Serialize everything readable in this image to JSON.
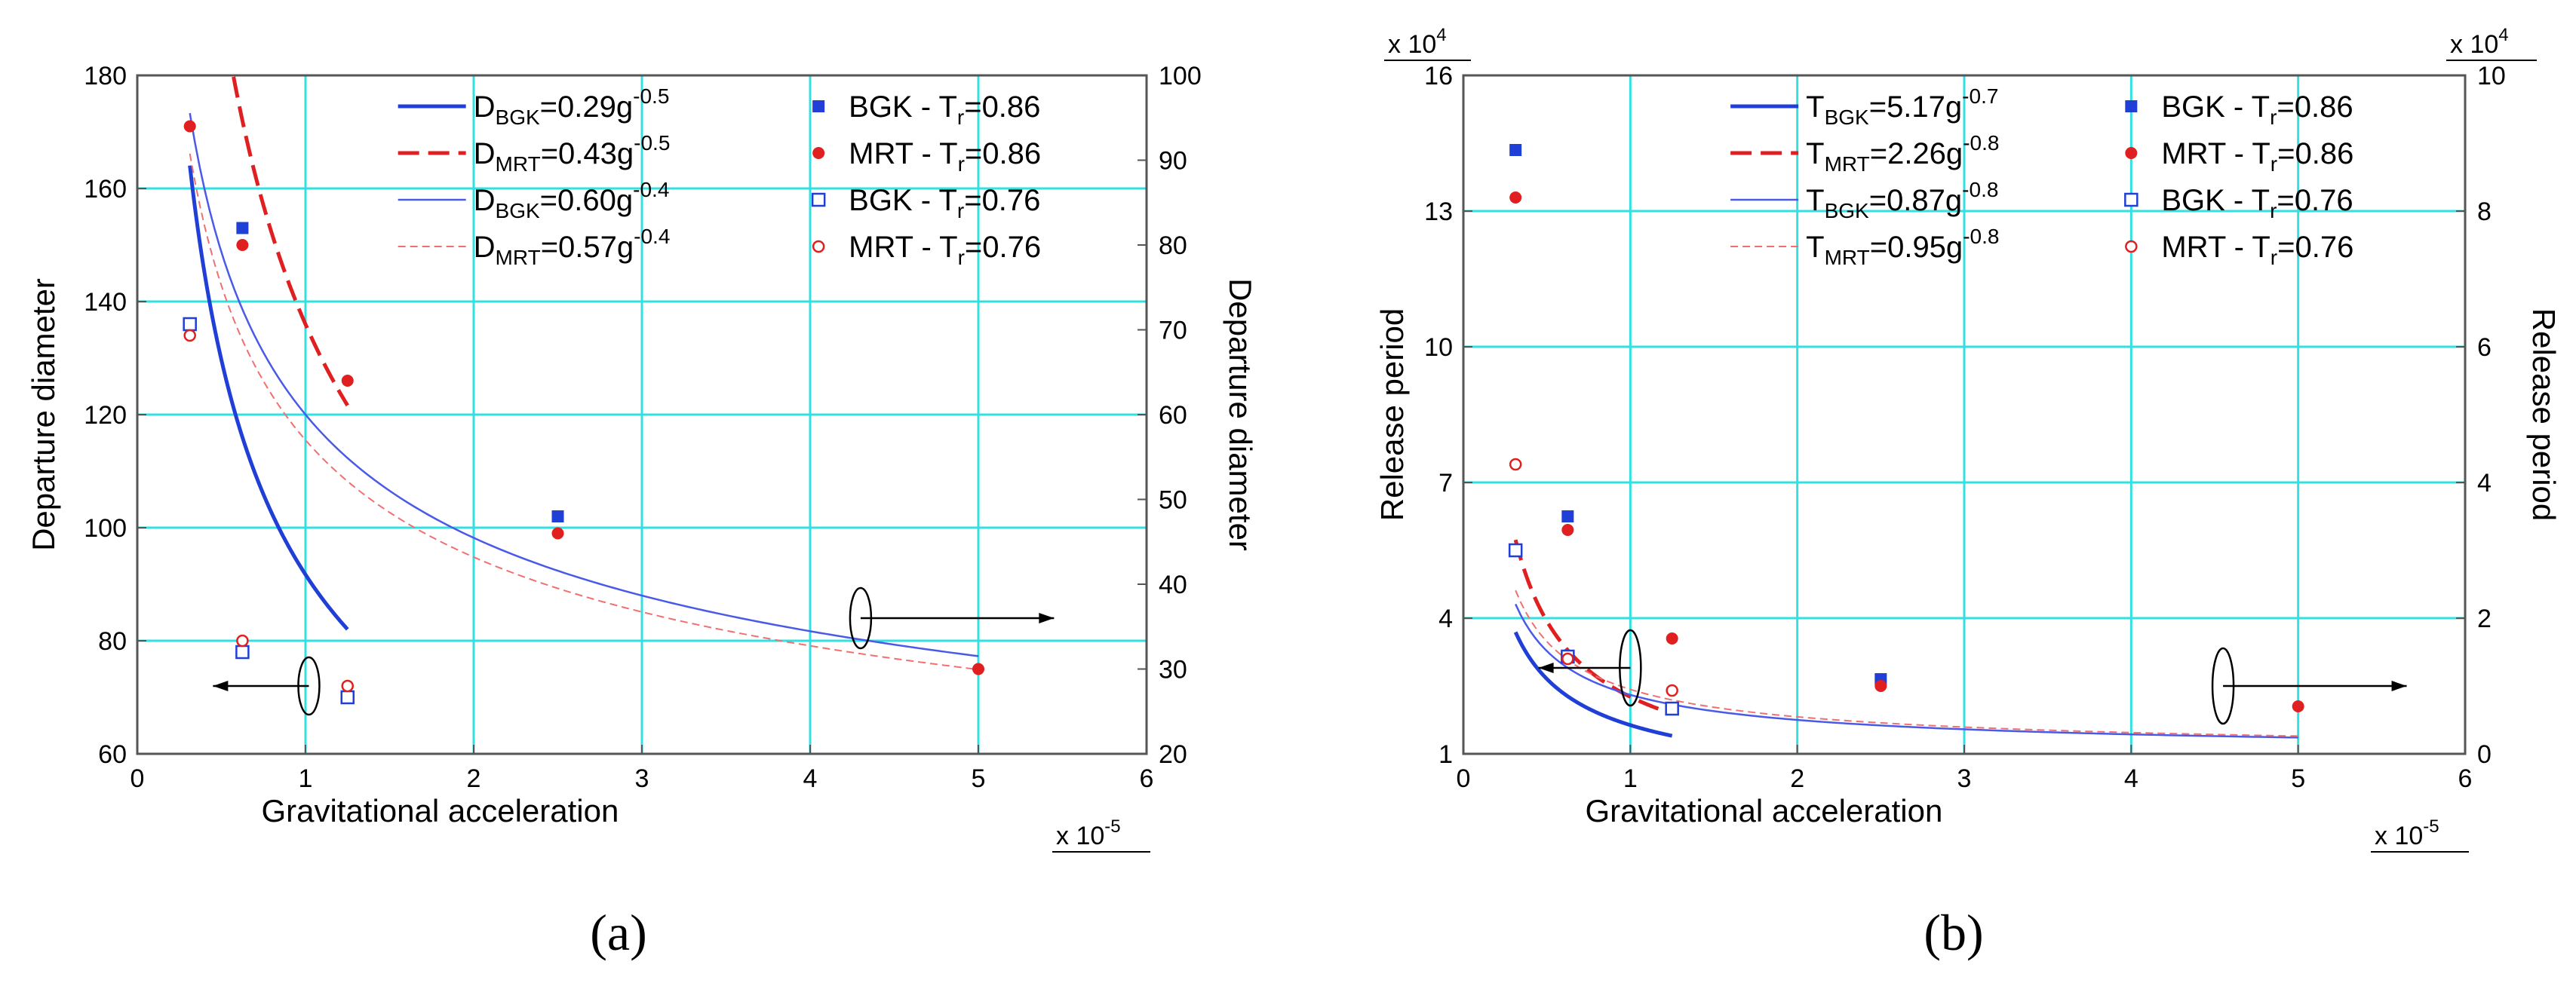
{
  "chart_data": [
    {
      "type": "scatter",
      "panel": "(a)",
      "caption": "(a)",
      "xlabel": "Gravitational acceleration",
      "x_multiplier": "x 10",
      "x_multiplier_exp": "-5",
      "xlim": [
        0,
        6
      ],
      "xticks": [
        "0",
        "1",
        "2",
        "3",
        "4",
        "5",
        "6"
      ],
      "ylabel_left": "Departure diameter",
      "ylim_left": [
        60,
        180
      ],
      "yticks_left": [
        "60",
        "80",
        "100",
        "120",
        "140",
        "160",
        "180"
      ],
      "ylabel_right": "Departure diameter",
      "ylim_right": [
        20,
        100
      ],
      "yticks_right": [
        "20",
        "30",
        "40",
        "50",
        "60",
        "70",
        "80",
        "90",
        "100"
      ],
      "grid": true,
      "legend": "top-right",
      "fits": [
        {
          "name": "D_BGK=0.29g^-0.5",
          "sym": "D",
          "sub": "BGK",
          "coef": "0.29g",
          "exp": "-0.5",
          "a": 0.29,
          "b": -0.5,
          "axis": "left",
          "x_range": [
            0.3125,
            1.25
          ],
          "color": "#1f3fd6",
          "style": "solid"
        },
        {
          "name": "D_MRT=0.43g^-0.5",
          "sym": "D",
          "sub": "MRT",
          "coef": "0.43g",
          "exp": "-0.5",
          "a": 0.43,
          "b": -0.5,
          "axis": "left",
          "x_range": [
            0.3125,
            1.25
          ],
          "color": "#e02020",
          "style": "dashed"
        },
        {
          "name": "D_BGK=0.60g^-0.4",
          "sym": "D",
          "sub": "BGK",
          "coef": "0.60g",
          "exp": "-0.4",
          "a": 0.6,
          "b": -0.4,
          "axis": "right",
          "x_range": [
            0.3125,
            5
          ],
          "color": "#4a5ae8",
          "style": "thin"
        },
        {
          "name": "D_MRT=0.57g^-0.4",
          "sym": "D",
          "sub": "MRT",
          "coef": "0.57g",
          "exp": "-0.4",
          "a": 0.57,
          "b": -0.4,
          "axis": "right",
          "x_range": [
            0.3125,
            5
          ],
          "color": "#f07070",
          "style": "thin-dashed"
        }
      ],
      "series": [
        {
          "name": "BGK - Tr=0.86",
          "label": "BGK - T",
          "sub": "r",
          "suffix": "=0.86",
          "marker": "filled-square",
          "color": "#1f3fd6",
          "axis": "right",
          "x": [
            0.625,
            2.5
          ],
          "y": [
            82,
            48
          ]
        },
        {
          "name": "MRT - Tr=0.86",
          "label": "MRT - T",
          "sub": "r",
          "suffix": "=0.86",
          "marker": "filled-circle",
          "color": "#e02020",
          "axis": "right",
          "x": [
            0.3125,
            0.625,
            1.25,
            2.5,
            5
          ],
          "y": [
            94,
            80,
            64,
            46,
            30
          ]
        },
        {
          "name": "BGK - Tr=0.76",
          "label": "BGK - T",
          "sub": "r",
          "suffix": "=0.76",
          "marker": "open-square",
          "color": "#1f3fd6",
          "axis": "left",
          "x": [
            0.3125,
            0.625,
            1.25
          ],
          "y": [
            136,
            78,
            70
          ]
        },
        {
          "name": "MRT - Tr=0.76",
          "label": "MRT - T",
          "sub": "r",
          "suffix": "=0.76",
          "marker": "open-circle",
          "color": "#e02020",
          "axis": "left",
          "x": [
            0.3125,
            0.625,
            1.25
          ],
          "y": [
            134,
            80,
            72
          ]
        }
      ]
    },
    {
      "type": "scatter",
      "panel": "(b)",
      "caption": "(b)",
      "xlabel": "Gravitational acceleration",
      "x_multiplier": "x 10",
      "x_multiplier_exp": "-5",
      "xlim": [
        0,
        6
      ],
      "xticks": [
        "0",
        "1",
        "2",
        "3",
        "4",
        "5",
        "6"
      ],
      "ylabel_left": "Release period",
      "ylim_left": [
        1,
        16
      ],
      "yticks_left": [
        "1",
        "4",
        "7",
        "10",
        "13",
        "16"
      ],
      "y_left_multiplier": "x 10",
      "y_left_multiplier_exp": "4",
      "ylabel_right": "Release period",
      "ylim_right": [
        0,
        10
      ],
      "yticks_right": [
        "0",
        "2",
        "4",
        "6",
        "8",
        "10"
      ],
      "y_right_multiplier": "x 10",
      "y_right_multiplier_exp": "4",
      "grid": true,
      "legend": "top-right",
      "fits": [
        {
          "name": "T_BGK=5.17g^-0.7",
          "sym": "T",
          "sub": "BGK",
          "coef": "5.17g",
          "exp": "-0.7",
          "a": 5.17,
          "b": -0.7,
          "axis": "left",
          "x_range": [
            0.3125,
            1.25
          ],
          "color": "#1f3fd6",
          "style": "solid"
        },
        {
          "name": "T_MRT=2.26g^-0.8",
          "sym": "T",
          "sub": "MRT",
          "coef": "2.26g",
          "exp": "-0.8",
          "a": 2.26,
          "b": -0.8,
          "axis": "left",
          "x_range": [
            0.3125,
            1.25
          ],
          "color": "#e02020",
          "style": "dashed"
        },
        {
          "name": "T_BGK=0.87g^-0.8",
          "sym": "T",
          "sub": "BGK",
          "coef": "0.87g",
          "exp": "-0.8",
          "a": 0.87,
          "b": -0.8,
          "axis": "right",
          "x_range": [
            0.3125,
            5
          ],
          "color": "#4a5ae8",
          "style": "thin"
        },
        {
          "name": "T_MRT=0.95g^-0.8",
          "sym": "T",
          "sub": "MRT",
          "coef": "0.95g",
          "exp": "-0.8",
          "a": 0.95,
          "b": -0.8,
          "axis": "right",
          "x_range": [
            0.3125,
            5
          ],
          "color": "#f07070",
          "style": "thin-dashed"
        }
      ],
      "series": [
        {
          "name": "BGK - Tr=0.86",
          "label": "BGK - T",
          "sub": "r",
          "suffix": "=0.86",
          "marker": "filled-square",
          "color": "#1f3fd6",
          "axis": "right",
          "x": [
            0.3125,
            0.625,
            2.5
          ],
          "y": [
            8.9,
            3.5,
            1.1
          ]
        },
        {
          "name": "MRT - Tr=0.86",
          "label": "MRT - T",
          "sub": "r",
          "suffix": "=0.86",
          "marker": "filled-circle",
          "color": "#e02020",
          "axis": "right",
          "x": [
            0.3125,
            0.625,
            1.25,
            2.5,
            5
          ],
          "y": [
            8.2,
            3.3,
            1.7,
            1.0,
            0.7
          ]
        },
        {
          "name": "BGK - Tr=0.76",
          "label": "BGK - T",
          "sub": "r",
          "suffix": "=0.76",
          "marker": "open-square",
          "color": "#1f3fd6",
          "axis": "left",
          "x": [
            0.3125,
            0.625,
            1.25
          ],
          "y": [
            5.5,
            3.15,
            2.0
          ]
        },
        {
          "name": "MRT - Tr=0.76",
          "label": "MRT - T",
          "sub": "r",
          "suffix": "=0.76",
          "marker": "open-circle",
          "color": "#e02020",
          "axis": "left",
          "x": [
            0.3125,
            0.625,
            1.25
          ],
          "y": [
            7.4,
            3.1,
            2.4
          ]
        }
      ]
    }
  ]
}
